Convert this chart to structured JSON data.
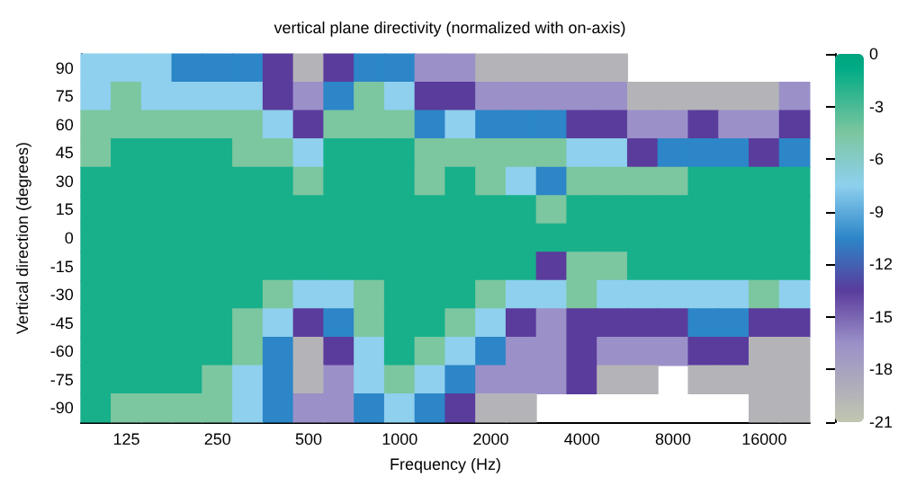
{
  "chart_data": {
    "type": "heatmap",
    "title": "vertical plane directivity (normalized with on-axis)",
    "xlabel": "Frequency (Hz)",
    "ylabel": "Vertical direction (degrees)",
    "categories": [
      null,
      "125",
      null,
      null,
      "250",
      null,
      null,
      "500",
      null,
      null,
      "1000",
      null,
      null,
      "2000",
      null,
      null,
      "4000",
      null,
      null,
      "8000",
      null,
      null,
      "16000",
      null
    ],
    "y_categories": [
      "90",
      "75",
      "60",
      "45",
      "30",
      "15",
      "0",
      "-15",
      "-30",
      "-45",
      "-60",
      "-75",
      "-90"
    ],
    "cells": [
      [
        -7.5,
        -7.5,
        -7.5,
        -10.5,
        -10.5,
        -10.5,
        -13.5,
        -19.5,
        -13.5,
        -10.5,
        -10.5,
        -16.5,
        -16.5,
        -19.5,
        -19.5,
        -19.5,
        -19.5,
        -19.5,
        null,
        null,
        null,
        null,
        null,
        null
      ],
      [
        -7.5,
        -4.5,
        -7.5,
        -7.5,
        -7.5,
        -7.5,
        -13.5,
        -16.5,
        -10.5,
        -4.5,
        -7.5,
        -13.5,
        -13.5,
        -16.5,
        -16.5,
        -16.5,
        -16.5,
        -16.5,
        -19.5,
        -19.5,
        -19.5,
        -19.5,
        -19.5,
        -16.5
      ],
      [
        -4.5,
        -4.5,
        -4.5,
        -4.5,
        -4.5,
        -4.5,
        -7.5,
        -13.5,
        -4.5,
        -4.5,
        -4.5,
        -10.5,
        -7.5,
        -10.5,
        -10.5,
        -10.5,
        -13.5,
        -13.5,
        -16.5,
        -16.5,
        -13.5,
        -16.5,
        -16.5,
        -13.5
      ],
      [
        -4.5,
        -1.5,
        -1.5,
        -1.5,
        -1.5,
        -4.5,
        -4.5,
        -7.5,
        -1.5,
        -1.5,
        -1.5,
        -4.5,
        -4.5,
        -4.5,
        -4.5,
        -4.5,
        -7.5,
        -7.5,
        -13.5,
        -10.5,
        -10.5,
        -10.5,
        -13.5,
        -10.5
      ],
      [
        -1.5,
        -1.5,
        -1.5,
        -1.5,
        -1.5,
        -1.5,
        -1.5,
        -4.5,
        -1.5,
        -1.5,
        -1.5,
        -4.5,
        -1.5,
        -4.5,
        -7.5,
        -10.5,
        -4.5,
        -4.5,
        -4.5,
        -4.5,
        -1.5,
        -1.5,
        -1.5,
        -1.5
      ],
      [
        -1.5,
        -1.5,
        -1.5,
        -1.5,
        -1.5,
        -1.5,
        -1.5,
        -1.5,
        -1.5,
        -1.5,
        -1.5,
        -1.5,
        -1.5,
        -1.5,
        -1.5,
        -4.5,
        -1.5,
        -1.5,
        -1.5,
        -1.5,
        -1.5,
        -1.5,
        -1.5,
        -1.5
      ],
      [
        -1.5,
        -1.5,
        -1.5,
        -1.5,
        -1.5,
        -1.5,
        -1.5,
        -1.5,
        -1.5,
        -1.5,
        -1.5,
        -1.5,
        -1.5,
        -1.5,
        -1.5,
        -1.5,
        -1.5,
        -1.5,
        -1.5,
        -1.5,
        -1.5,
        -1.5,
        -1.5,
        -1.5
      ],
      [
        -1.5,
        -1.5,
        -1.5,
        -1.5,
        -1.5,
        -1.5,
        -1.5,
        -1.5,
        -1.5,
        -1.5,
        -1.5,
        -1.5,
        -1.5,
        -1.5,
        -1.5,
        -13.5,
        -4.5,
        -4.5,
        -1.5,
        -1.5,
        -1.5,
        -1.5,
        -1.5,
        -1.5
      ],
      [
        -1.5,
        -1.5,
        -1.5,
        -1.5,
        -1.5,
        -1.5,
        -4.5,
        -7.5,
        -7.5,
        -4.5,
        -1.5,
        -1.5,
        -1.5,
        -4.5,
        -7.5,
        -7.5,
        -4.5,
        -7.5,
        -7.5,
        -7.5,
        -7.5,
        -7.5,
        -4.5,
        -7.5
      ],
      [
        -1.5,
        -1.5,
        -1.5,
        -1.5,
        -1.5,
        -4.5,
        -7.5,
        -13.5,
        -10.5,
        -4.5,
        -1.5,
        -1.5,
        -4.5,
        -7.5,
        -13.5,
        -16.5,
        -13.5,
        -13.5,
        -13.5,
        -13.5,
        -10.5,
        -10.5,
        -13.5,
        -13.5
      ],
      [
        -1.5,
        -1.5,
        -1.5,
        -1.5,
        -1.5,
        -4.5,
        -10.5,
        -19.5,
        -13.5,
        -7.5,
        -1.5,
        -4.5,
        -7.5,
        -10.5,
        -16.5,
        -16.5,
        -13.5,
        -16.5,
        -16.5,
        -16.5,
        -13.5,
        -13.5,
        -19.5,
        -19.5
      ],
      [
        -1.5,
        -1.5,
        -1.5,
        -1.5,
        -4.5,
        -7.5,
        -10.5,
        -19.5,
        -16.5,
        -7.5,
        -4.5,
        -7.5,
        -10.5,
        -16.5,
        -16.5,
        -16.5,
        -13.5,
        -19.5,
        -19.5,
        null,
        -19.5,
        -19.5,
        -19.5,
        -19.5
      ],
      [
        -1.5,
        -4.5,
        -4.5,
        -4.5,
        -4.5,
        -7.5,
        -10.5,
        -16.5,
        -16.5,
        -10.5,
        -7.5,
        -10.5,
        -13.5,
        -19.5,
        -19.5,
        null,
        null,
        null,
        null,
        null,
        null,
        null,
        -19.5,
        -19.5
      ]
    ],
    "clim": [
      -21,
      0
    ],
    "cticks": [
      0,
      -3,
      -6,
      -9,
      -12,
      -15,
      -18,
      -21
    ],
    "colors": [
      "#b4b4b8",
      "#9b90c8",
      "#5a3c9c",
      "#2c86c8",
      "#8ed0ee",
      "#7cc6a0",
      "#17b08a"
    ]
  }
}
